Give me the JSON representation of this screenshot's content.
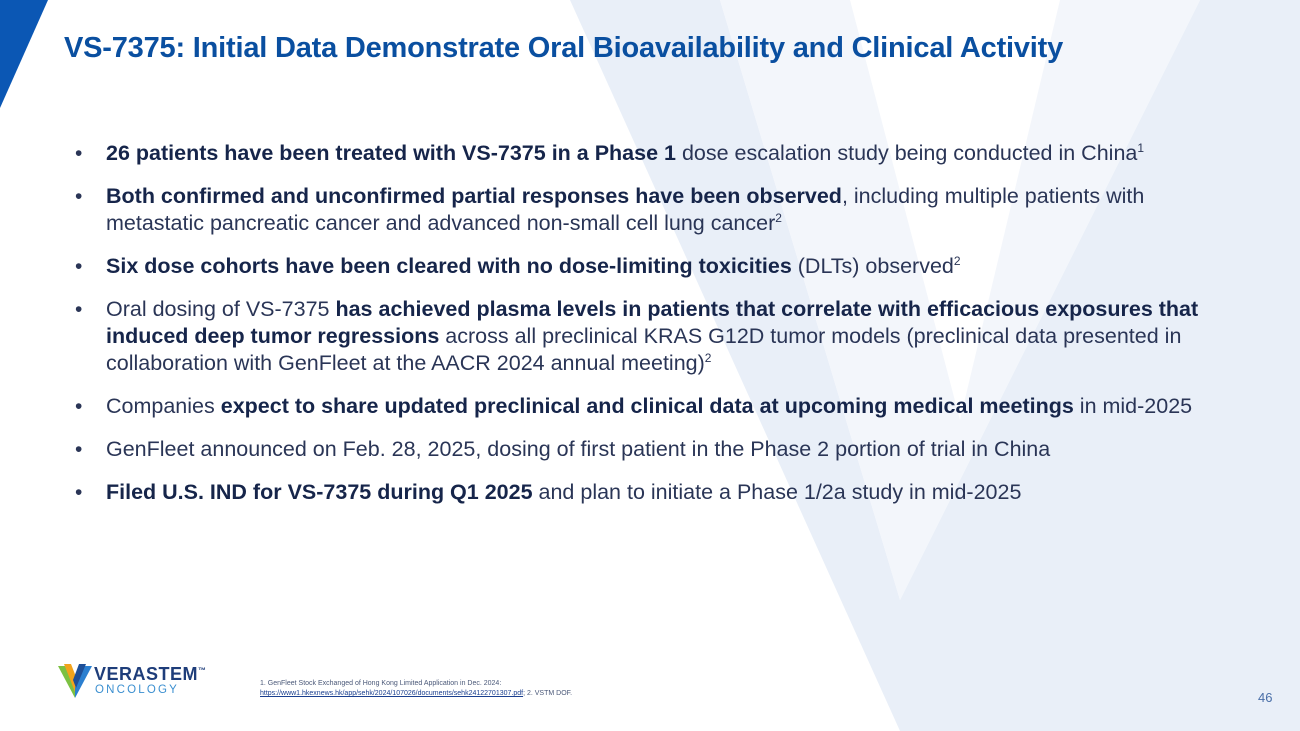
{
  "slide": {
    "title": "VS-7375: Initial Data Demonstrate Oral Bioavailability and Clinical Activity",
    "page_number": "46"
  },
  "colors": {
    "title": "#0a4fa0",
    "corner_accent": "#0b57b4",
    "chevron_light": "#e8eef7",
    "text": "#2a3556"
  },
  "bullets": [
    {
      "b1": "26 patients have been treated with VS-7375 in a Phase 1",
      "t1": " dose escalation study being conducted in China",
      "sup": "1"
    },
    {
      "b1": "Both confirmed and unconfirmed partial responses have been observed",
      "t1": ", including multiple patients with metastatic pancreatic cancer and advanced non-small cell lung cancer",
      "sup": "2"
    },
    {
      "b1": "Six dose cohorts have been cleared with no dose-limiting toxicities",
      "t1": " (DLTs) observed",
      "sup": "2"
    },
    {
      "t0": "Oral dosing of VS-7375 ",
      "b1": "has achieved plasma levels in patients that correlate with efficacious exposures that induced deep tumor regressions",
      "t1": " across all preclinical KRAS G12D tumor models (preclinical data presented in collaboration with GenFleet at the AACR 2024 annual meeting)",
      "sup": "2"
    },
    {
      "t0": "Companies ",
      "b1": "expect to share updated preclinical and clinical data at upcoming medical meetings",
      "t1": " in mid-2025"
    },
    {
      "t0": "GenFleet announced on Feb. 28, 2025, dosing of first patient in the Phase 2 portion of trial in China"
    },
    {
      "b1": "Filed U.S. IND for VS-7375 during Q1 2025",
      "t1": " and plan to initiate a Phase 1/2a study in mid-2025"
    }
  ],
  "logo": {
    "wordmark": "VERASTEM",
    "trademark": "™",
    "subtitle": "ONCOLOGY"
  },
  "footnotes": {
    "line1": "1. GenFleet Stock Exchanged of Hong Kong Limited Application in Dec. 2024:",
    "link": "https://www1.hkexnews.hk/app/sehk/2024/107026/documents/sehk24122701307.pdf",
    "after_link": "; 2. VSTM DOF."
  }
}
